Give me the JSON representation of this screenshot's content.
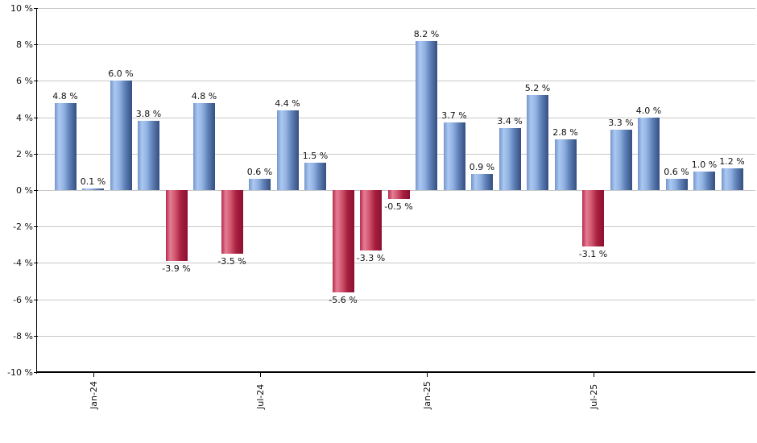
{
  "chart_data": {
    "type": "bar",
    "title": "",
    "xlabel": "",
    "ylabel": "",
    "ylim": [
      -10,
      10
    ],
    "y_tick_step": 2,
    "y_tick_labels": [
      "10 %",
      "8 %",
      "6 %",
      "4 %",
      "2 %",
      "0 %",
      "-2 %",
      "-4 %",
      "-6 %",
      "-8 %",
      "-10 %"
    ],
    "grid": "horizontal",
    "legend_position": "none",
    "bars": [
      {
        "value": 4.8,
        "label": "4.8 %"
      },
      {
        "value": 0.1,
        "label": "0.1 %"
      },
      {
        "value": 6.0,
        "label": "6.0 %"
      },
      {
        "value": 3.8,
        "label": "3.8 %"
      },
      {
        "value": -3.9,
        "label": "-3.9 %"
      },
      {
        "value": 4.8,
        "label": "4.8 %"
      },
      {
        "value": -3.5,
        "label": "-3.5 %"
      },
      {
        "value": 0.6,
        "label": "0.6 %"
      },
      {
        "value": 4.4,
        "label": "4.4 %"
      },
      {
        "value": 1.5,
        "label": "1.5 %"
      },
      {
        "value": -5.6,
        "label": "-5.6 %"
      },
      {
        "value": -3.3,
        "label": "-3.3 %"
      },
      {
        "value": -0.5,
        "label": "-0.5 %"
      },
      {
        "value": 8.2,
        "label": "8.2 %"
      },
      {
        "value": 3.7,
        "label": "3.7 %"
      },
      {
        "value": 0.9,
        "label": "0.9 %"
      },
      {
        "value": 3.4,
        "label": "3.4 %"
      },
      {
        "value": 5.2,
        "label": "5.2 %"
      },
      {
        "value": 2.8,
        "label": "2.8 %"
      },
      {
        "value": -3.1,
        "label": "-3.1 %"
      },
      {
        "value": 3.3,
        "label": "3.3 %"
      },
      {
        "value": 4.0,
        "label": "4.0 %"
      },
      {
        "value": 0.6,
        "label": "0.6 %"
      },
      {
        "value": 1.0,
        "label": "1.0 %"
      },
      {
        "value": 1.2,
        "label": "1.2 %"
      }
    ],
    "x_ticks": [
      {
        "bar_index": 1,
        "label": "Jan-24"
      },
      {
        "bar_index": 7,
        "label": "Jul-24"
      },
      {
        "bar_index": 13,
        "label": "Jan-25"
      },
      {
        "bar_index": 19,
        "label": "Jul-25"
      }
    ],
    "colors": {
      "positive_bar_gradient": [
        "#7596cb",
        "#abc8f2",
        "#91b2e2",
        "#5f80b6",
        "#344e80"
      ],
      "negative_bar_gradient": [
        "#b62c4e",
        "#e37e95",
        "#d25670",
        "#a82040",
        "#8c1030"
      ],
      "gridline": "#c8c8c8",
      "axis": "#000000",
      "label_text": "#111111",
      "background": "#ffffff"
    }
  }
}
